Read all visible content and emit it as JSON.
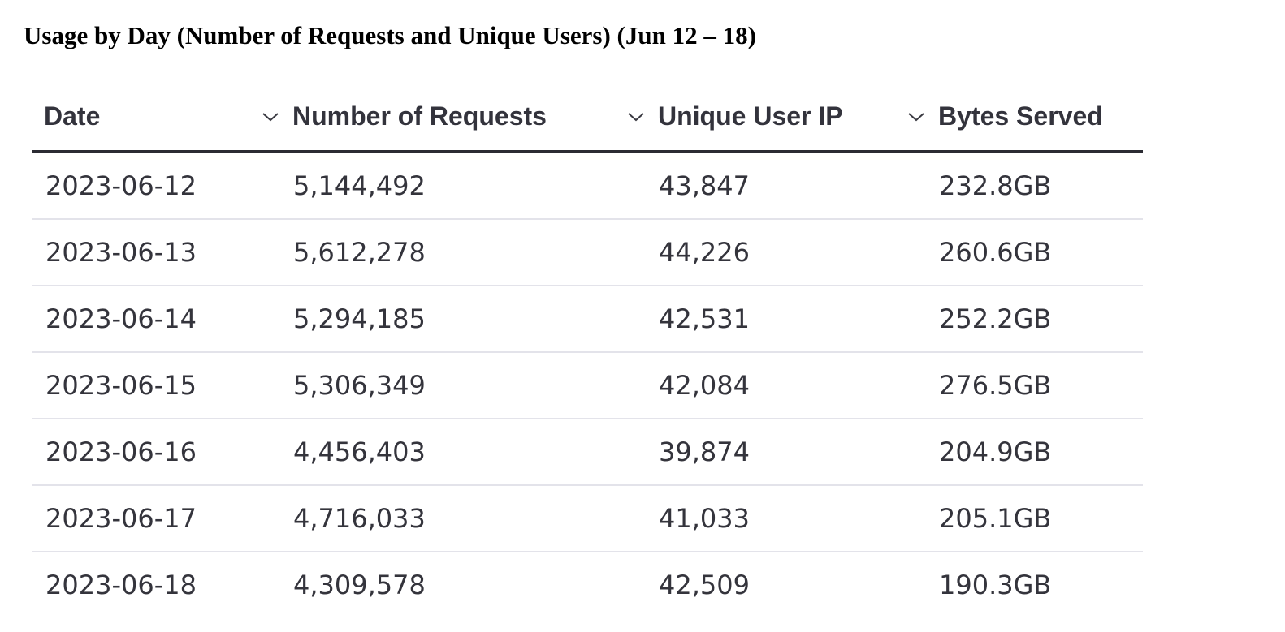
{
  "title": "Usage by Day (Number of Requests and Unique Users) (Jun 12 – 18)",
  "table": {
    "columns": [
      {
        "label": "Date",
        "icon": "chevron-down-icon"
      },
      {
        "label": "Number of Requests",
        "icon": "chevron-down-icon"
      },
      {
        "label": "Unique User IP",
        "icon": "chevron-down-icon"
      },
      {
        "label": "Bytes Served"
      }
    ],
    "rows": [
      [
        "2023-06-12",
        "5,144,492",
        "43,847",
        "232.8GB"
      ],
      [
        "2023-06-13",
        "5,612,278",
        "44,226",
        "260.6GB"
      ],
      [
        "2023-06-14",
        "5,294,185",
        "42,531",
        "252.2GB"
      ],
      [
        "2023-06-15",
        "5,306,349",
        "42,084",
        "276.5GB"
      ],
      [
        "2023-06-16",
        "4,456,403",
        "39,874",
        "204.9GB"
      ],
      [
        "2023-06-17",
        "4,716,033",
        "41,033",
        "205.1GB"
      ],
      [
        "2023-06-18",
        "4,309,578",
        "42,509",
        "190.3GB"
      ]
    ]
  }
}
